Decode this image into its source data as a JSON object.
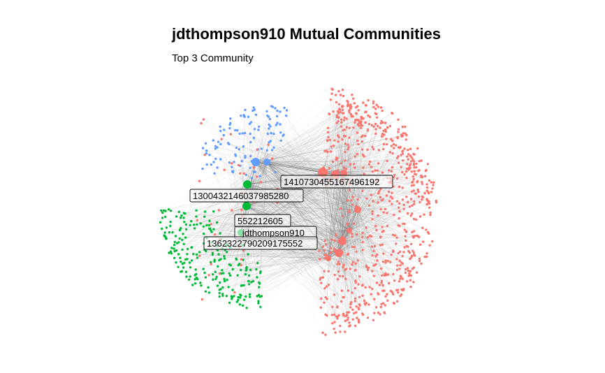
{
  "title": "jdthompson910 Mutual Communities",
  "subtitle": "Top 3 Community",
  "colors": {
    "community_red": "#F8766D",
    "community_green": "#00BA38",
    "community_blue": "#619CFF",
    "edge": "#555555"
  },
  "node_labels": [
    {
      "text": "1410730455167496192",
      "community": "red"
    },
    {
      "text": "1300432146037985280",
      "community": "blue"
    },
    {
      "text": "552212605",
      "community": "green"
    },
    {
      "text": "jdthompson910",
      "community": "green"
    },
    {
      "text": "1362322790209175552",
      "community": "red"
    }
  ]
}
